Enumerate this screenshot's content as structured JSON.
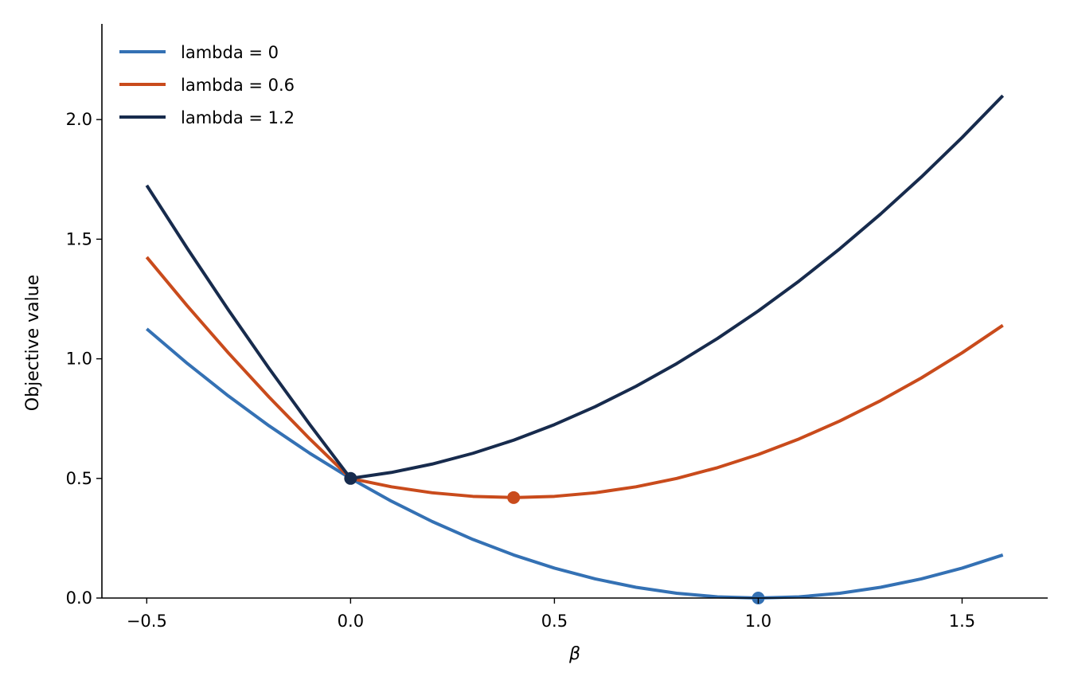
{
  "chart_data": {
    "type": "line",
    "xlabel": "β",
    "ylabel": "Objective value",
    "xlim": [
      -0.61,
      1.71
    ],
    "ylim": [
      0.0,
      2.4
    ],
    "xticks": [
      -0.5,
      0.0,
      0.5,
      1.0,
      1.5
    ],
    "xtick_labels": [
      "−0.5",
      "0.0",
      "0.5",
      "1.0",
      "1.5"
    ],
    "yticks": [
      0.0,
      0.5,
      1.0,
      1.5,
      2.0
    ],
    "ytick_labels": [
      "0.0",
      "0.5",
      "1.0",
      "1.5",
      "2.0"
    ],
    "grid": false,
    "legend_position": "top-left",
    "series": [
      {
        "name": "lambda = 0",
        "color": "#3471b4",
        "x": [
          -0.5,
          -0.4,
          -0.3,
          -0.2,
          -0.1,
          0.0,
          0.1,
          0.2,
          0.3,
          0.4,
          0.5,
          0.6,
          0.7,
          0.8,
          0.9,
          1.0,
          1.1,
          1.2,
          1.3,
          1.4,
          1.5,
          1.6
        ],
        "y": [
          1.125,
          0.98,
          0.845,
          0.72,
          0.605,
          0.5,
          0.405,
          0.32,
          0.245,
          0.18,
          0.125,
          0.08,
          0.045,
          0.02,
          0.005,
          0.0,
          0.005,
          0.02,
          0.045,
          0.08,
          0.125,
          0.18
        ],
        "minimum": {
          "x": 1.0,
          "y": 0.0
        }
      },
      {
        "name": "lambda = 0.6",
        "color": "#c94b1c",
        "x": [
          -0.5,
          -0.4,
          -0.3,
          -0.2,
          -0.1,
          0.0,
          0.1,
          0.2,
          0.3,
          0.4,
          0.5,
          0.6,
          0.7,
          0.8,
          0.9,
          1.0,
          1.1,
          1.2,
          1.3,
          1.4,
          1.5,
          1.6
        ],
        "y": [
          1.425,
          1.22,
          1.025,
          0.84,
          0.665,
          0.5,
          0.465,
          0.44,
          0.425,
          0.42,
          0.425,
          0.44,
          0.465,
          0.5,
          0.545,
          0.6,
          0.665,
          0.74,
          0.825,
          0.92,
          1.025,
          1.14
        ],
        "minimum": {
          "x": 0.4,
          "y": 0.42
        }
      },
      {
        "name": "lambda = 1.2",
        "color": "#172b4d",
        "x": [
          -0.5,
          -0.4,
          -0.3,
          -0.2,
          -0.1,
          0.0,
          0.1,
          0.2,
          0.3,
          0.4,
          0.5,
          0.6,
          0.7,
          0.8,
          0.9,
          1.0,
          1.1,
          1.2,
          1.3,
          1.4,
          1.5,
          1.6
        ],
        "y": [
          1.725,
          1.46,
          1.205,
          0.96,
          0.725,
          0.5,
          0.525,
          0.56,
          0.605,
          0.66,
          0.725,
          0.8,
          0.885,
          0.98,
          1.085,
          1.2,
          1.325,
          1.46,
          1.605,
          1.76,
          1.925,
          2.1
        ],
        "minimum": {
          "x": 0.0,
          "y": 0.5
        }
      }
    ]
  }
}
